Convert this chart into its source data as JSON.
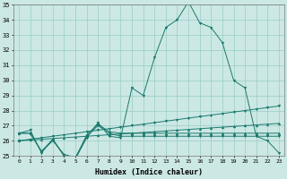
{
  "xlabel": "Humidex (Indice chaleur)",
  "x": [
    0,
    1,
    2,
    3,
    4,
    5,
    6,
    7,
    8,
    9,
    10,
    11,
    12,
    13,
    14,
    15,
    16,
    17,
    18,
    19,
    20,
    21,
    22,
    23
  ],
  "line_main": [
    26.5,
    26.7,
    25.2,
    26.1,
    25.0,
    24.8,
    26.2,
    27.2,
    26.3,
    26.2,
    29.5,
    29.0,
    31.5,
    33.5,
    34.0,
    35.2,
    33.8,
    33.5,
    32.5,
    30.0,
    29.5,
    26.3,
    26.0,
    25.2
  ],
  "line_diag": [
    26.0,
    26.1,
    26.2,
    26.3,
    26.4,
    26.5,
    26.6,
    26.7,
    26.8,
    26.9,
    27.0,
    27.1,
    27.2,
    27.3,
    27.4,
    27.5,
    27.6,
    27.7,
    27.8,
    27.9,
    28.0,
    28.1,
    28.2,
    28.3
  ],
  "line_diag2": [
    26.0,
    26.05,
    26.1,
    26.15,
    26.2,
    26.25,
    26.3,
    26.35,
    26.4,
    26.45,
    26.5,
    26.55,
    26.6,
    26.65,
    26.7,
    26.75,
    26.8,
    26.85,
    26.9,
    26.95,
    27.0,
    27.05,
    27.1,
    27.15
  ],
  "line_flat1": [
    26.5,
    26.5,
    25.3,
    26.0,
    25.1,
    24.9,
    26.3,
    27.0,
    26.5,
    26.3,
    26.3,
    26.3,
    26.3,
    26.3,
    26.3,
    26.3,
    26.3,
    26.3,
    26.3,
    26.3,
    26.3,
    26.3,
    26.3,
    26.3
  ],
  "line_flat2": [
    26.5,
    26.5,
    25.3,
    26.1,
    25.0,
    24.8,
    26.4,
    27.1,
    26.6,
    26.5,
    26.5,
    26.5,
    26.5,
    26.5,
    26.5,
    26.5,
    26.5,
    26.5,
    26.5,
    26.5,
    26.5,
    26.5,
    26.5,
    26.5
  ],
  "line_color": "#1a7a6e",
  "bg_color": "#cce8e4",
  "grid_color": "#99ccc6",
  "ylim_min": 25,
  "ylim_max": 35,
  "yticks": [
    25,
    26,
    27,
    28,
    29,
    30,
    31,
    32,
    33,
    34,
    35
  ],
  "xticks": [
    0,
    1,
    2,
    3,
    4,
    5,
    6,
    7,
    8,
    9,
    10,
    11,
    12,
    13,
    14,
    15,
    16,
    17,
    18,
    19,
    20,
    21,
    22,
    23
  ]
}
